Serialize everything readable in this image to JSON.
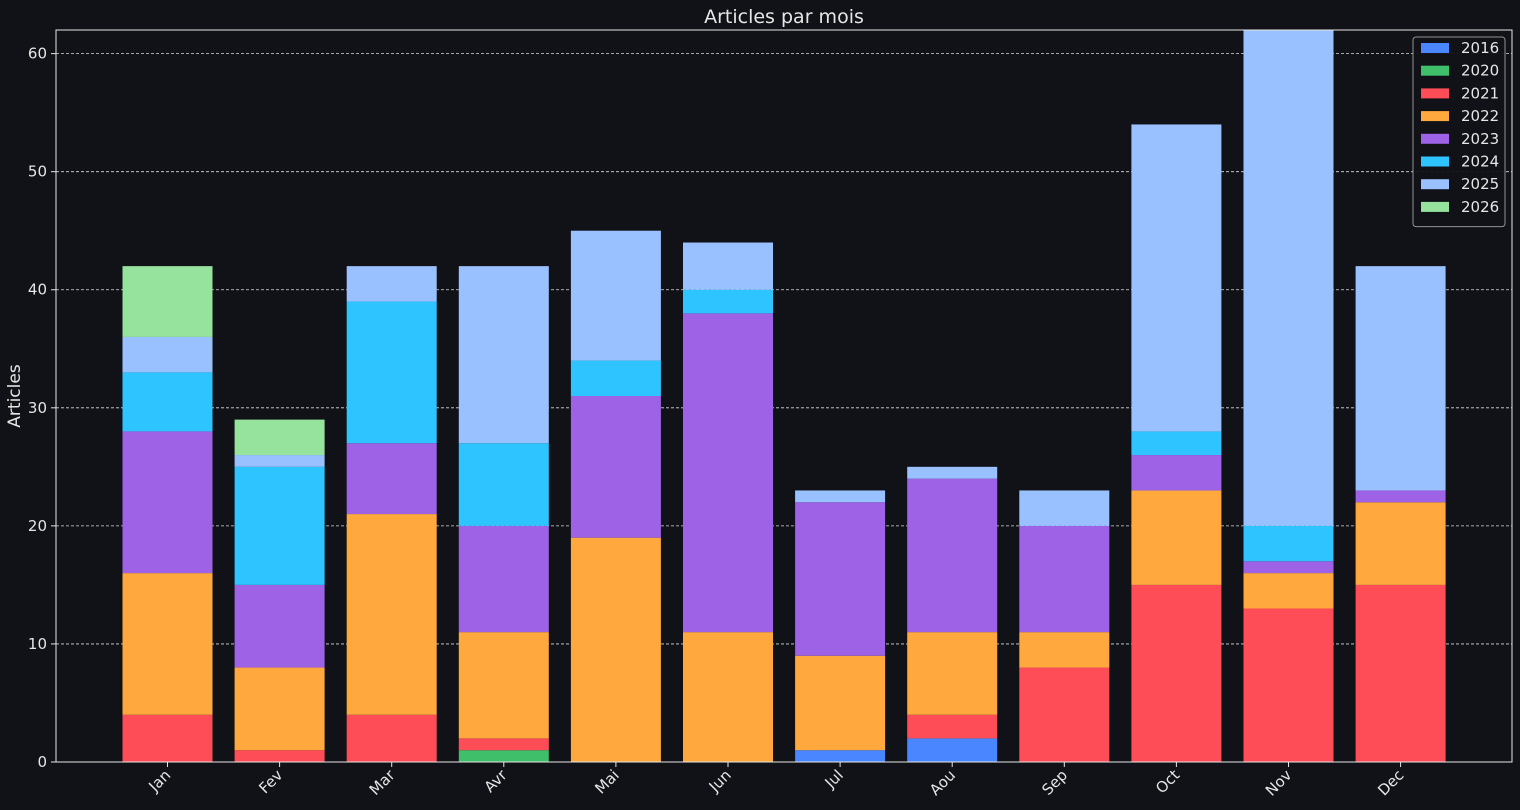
{
  "chart_data": {
    "type": "bar",
    "stacked": true,
    "title": "Articles par mois",
    "xlabel": "",
    "ylabel": "Articles",
    "ylim": [
      0,
      62
    ],
    "yticks": [
      0,
      10,
      20,
      30,
      40,
      50,
      60
    ],
    "grid": "horizontal dashed",
    "legend_position": "top-right",
    "categories": [
      "Jan",
      "Fev",
      "Mar",
      "Avr",
      "Mai",
      "Jun",
      "Jul",
      "Aou",
      "Sep",
      "Oct",
      "Nov",
      "Dec"
    ],
    "series": [
      {
        "name": "2016",
        "color": "#4a86ff",
        "values": [
          0,
          0,
          0,
          0,
          0,
          0,
          1,
          2,
          0,
          0,
          0,
          0
        ]
      },
      {
        "name": "2020",
        "color": "#3fbf6a",
        "values": [
          0,
          0,
          0,
          1,
          0,
          0,
          0,
          0,
          0,
          0,
          0,
          0
        ]
      },
      {
        "name": "2021",
        "color": "#ff4d58",
        "values": [
          4,
          1,
          4,
          1,
          0,
          0,
          0,
          2,
          8,
          15,
          13,
          15
        ]
      },
      {
        "name": "2022",
        "color": "#ffa83d",
        "values": [
          12,
          7,
          17,
          9,
          19,
          11,
          8,
          7,
          3,
          8,
          3,
          7
        ]
      },
      {
        "name": "2023",
        "color": "#9d62e6",
        "values": [
          12,
          7,
          6,
          9,
          12,
          27,
          13,
          13,
          9,
          3,
          1,
          1
        ]
      },
      {
        "name": "2024",
        "color": "#2ec4ff",
        "values": [
          5,
          10,
          12,
          7,
          3,
          2,
          0,
          0,
          0,
          2,
          3,
          0
        ]
      },
      {
        "name": "2025",
        "color": "#99c1ff",
        "values": [
          3,
          1,
          3,
          15,
          11,
          4,
          1,
          1,
          3,
          26,
          43,
          19
        ]
      },
      {
        "name": "2026",
        "color": "#95e39c",
        "values": [
          6,
          3,
          0,
          0,
          0,
          0,
          0,
          0,
          0,
          0,
          0,
          0
        ]
      }
    ]
  }
}
